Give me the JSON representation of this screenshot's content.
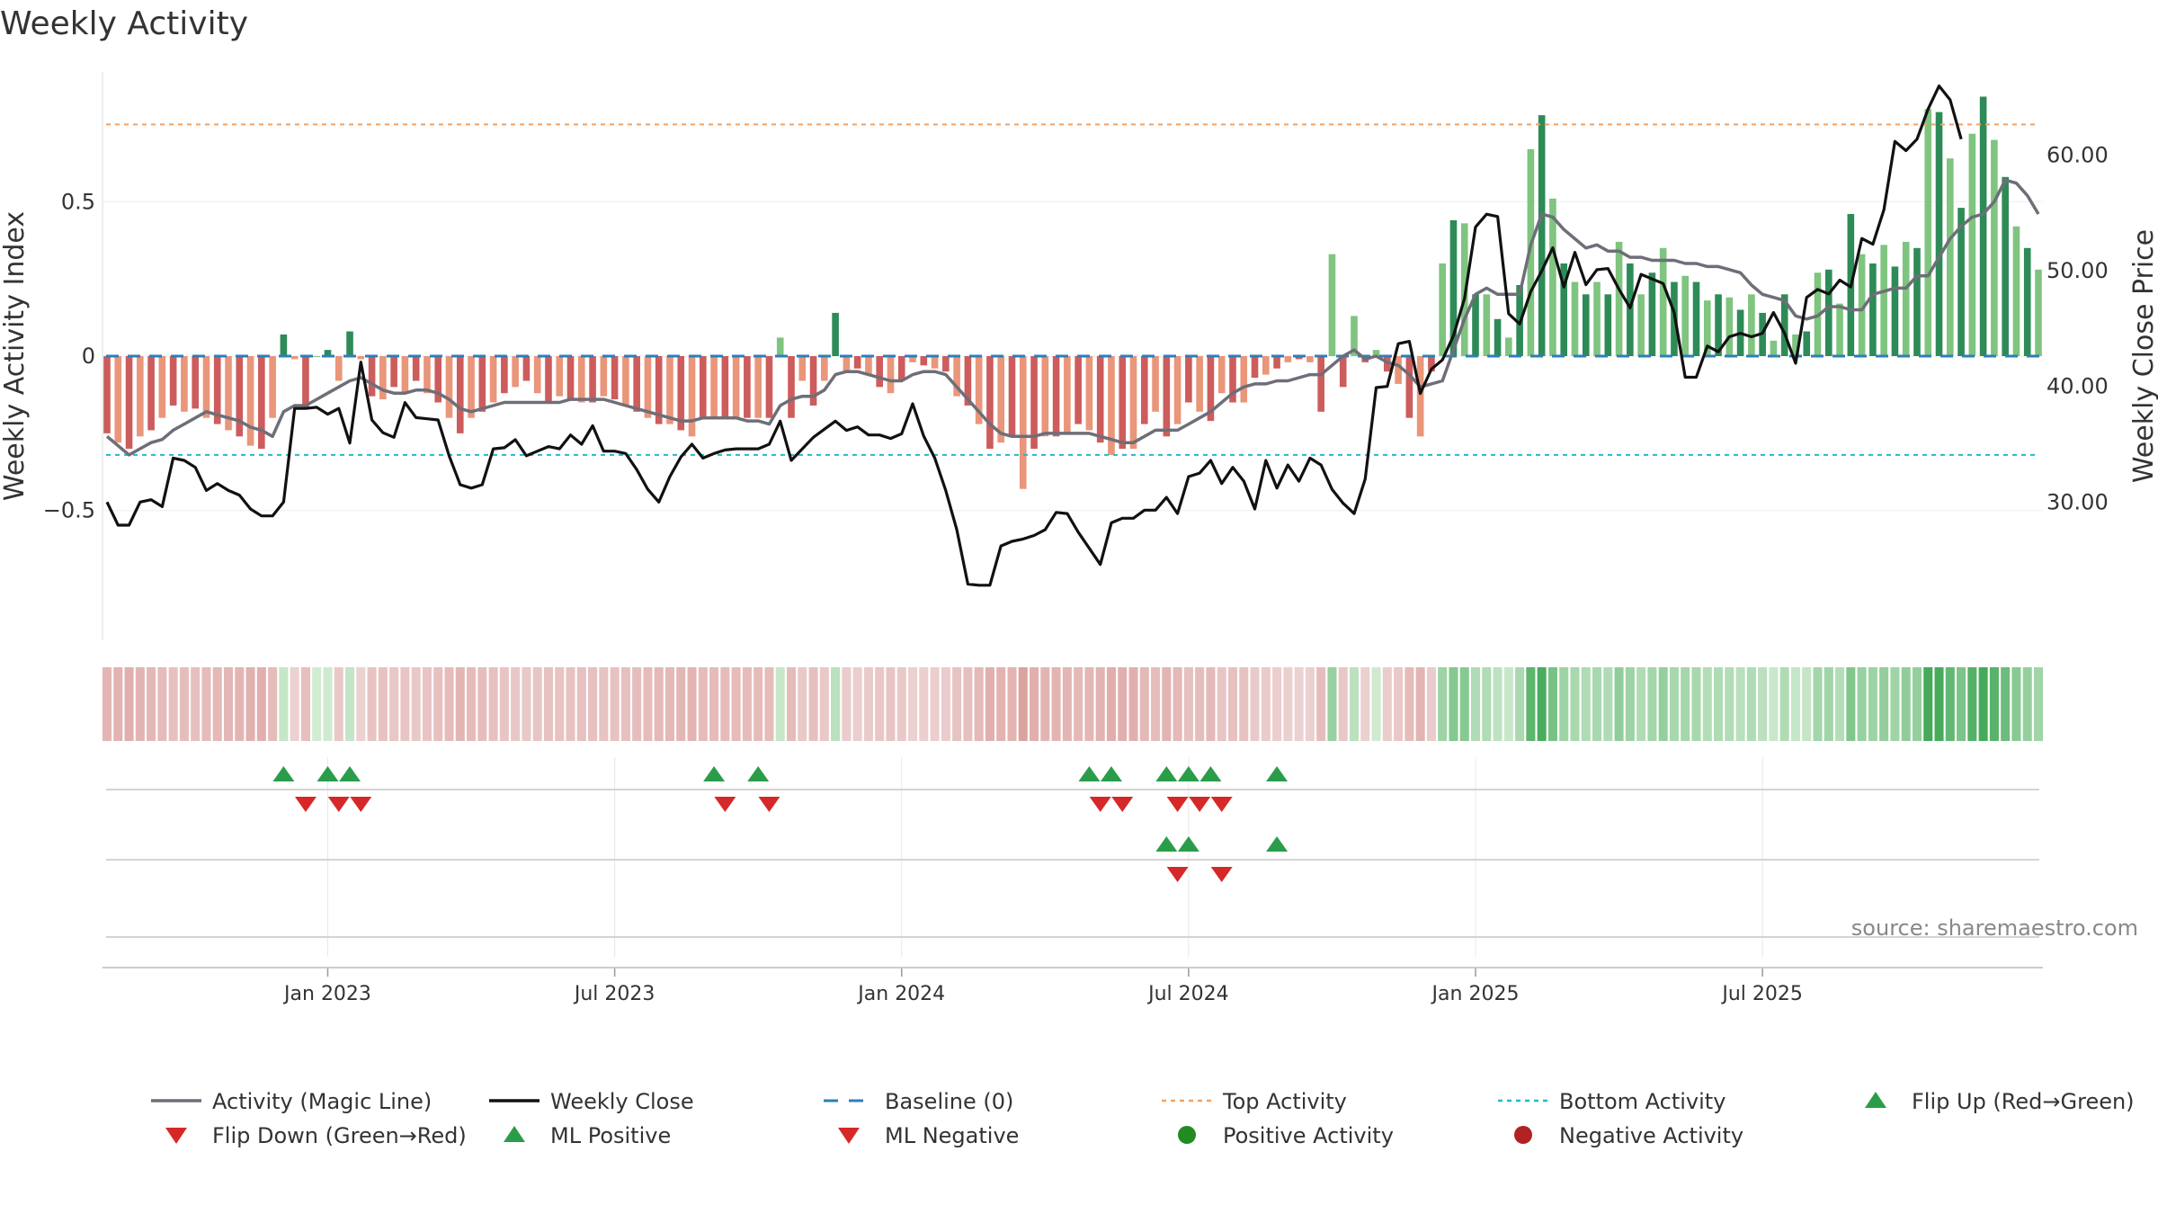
{
  "chart_data": {
    "type": "bar",
    "title": "Weekly Activity",
    "ylabel": "Weekly Activity Index",
    "y2label": "Weekly Close Price",
    "ylim": [
      -0.92,
      0.92
    ],
    "y2lim": [
      18.04,
      67.21
    ],
    "y_ticks": [
      {
        "value": 0.5,
        "label": "0.5"
      },
      {
        "value": 0,
        "label": "0"
      },
      {
        "value": -0.5,
        "label": "−0.5"
      }
    ],
    "y2_ticks": [
      {
        "value": 60,
        "label": "60.00"
      },
      {
        "value": 50,
        "label": "50.00"
      },
      {
        "value": 40,
        "label": "40.00"
      },
      {
        "value": 30,
        "label": "30.00"
      }
    ],
    "x_ticks": [
      {
        "index": 20,
        "label": "Jan 2023"
      },
      {
        "index": 46,
        "label": "Jul 2023"
      },
      {
        "index": 72,
        "label": "Jan 2024"
      },
      {
        "index": 98,
        "label": "Jul 2024"
      },
      {
        "index": 124,
        "label": "Jan 2025"
      },
      {
        "index": 150,
        "label": "Jul 2025"
      }
    ],
    "top_activity": 0.75,
    "bottom_activity": -0.32,
    "baseline": 0,
    "source": "source: sharemaestro.com",
    "series": [
      {
        "name": "Weekly Activity Index",
        "values": [
          -0.25,
          -0.28,
          -0.3,
          -0.26,
          -0.24,
          -0.2,
          -0.16,
          -0.18,
          -0.17,
          -0.2,
          -0.22,
          -0.24,
          -0.26,
          -0.29,
          -0.3,
          -0.2,
          0.07,
          -0.01,
          -0.17,
          0,
          0.02,
          -0.08,
          0.08,
          -0.01,
          -0.13,
          -0.14,
          -0.1,
          -0.12,
          -0.08,
          -0.12,
          -0.15,
          -0.2,
          -0.25,
          -0.2,
          -0.18,
          -0.15,
          -0.12,
          -0.1,
          -0.08,
          -0.12,
          -0.15,
          -0.13,
          -0.14,
          -0.15,
          -0.15,
          -0.13,
          -0.14,
          -0.16,
          -0.18,
          -0.2,
          -0.22,
          -0.22,
          -0.24,
          -0.26,
          -0.2,
          -0.2,
          -0.2,
          -0.2,
          -0.2,
          -0.2,
          -0.2,
          0.06,
          -0.2,
          -0.08,
          -0.16,
          -0.08,
          0.14,
          -0.05,
          -0.04,
          -0.06,
          -0.1,
          -0.12,
          -0.08,
          -0.02,
          -0.03,
          -0.04,
          -0.05,
          -0.13,
          -0.16,
          -0.22,
          -0.3,
          -0.28,
          -0.26,
          -0.43,
          -0.3,
          -0.26,
          -0.26,
          -0.25,
          -0.22,
          -0.24,
          -0.28,
          -0.32,
          -0.3,
          -0.3,
          -0.22,
          -0.18,
          -0.26,
          -0.22,
          -0.15,
          -0.18,
          -0.21,
          -0.12,
          -0.15,
          -0.15,
          -0.07,
          -0.06,
          -0.04,
          -0.02,
          -0.01,
          -0.02,
          -0.18,
          0.33,
          -0.1,
          0.13,
          -0.02,
          0.02,
          -0.05,
          -0.09,
          -0.2,
          -0.26,
          -0.05,
          0.3,
          0.44,
          0.43,
          0.2,
          0.2,
          0.12,
          0.06,
          0.23,
          0.67,
          0.78,
          0.51,
          0.3,
          0.24,
          0.2,
          0.24,
          0.2,
          0.37,
          0.3,
          0.2,
          0.27,
          0.35,
          0.24,
          0.26,
          0.24,
          0.18,
          0.2,
          0.19,
          0.15,
          0.2,
          0.14,
          0.05,
          0.2,
          0.07,
          0.08,
          0.27,
          0.28,
          0.17,
          0.46,
          0.33,
          0.3,
          0.36,
          0.29,
          0.37,
          0.35,
          0.8,
          0.79,
          0.64,
          0.48,
          0.72,
          0.84,
          0.7,
          0.58,
          0.42,
          0.35,
          0.28
        ]
      },
      {
        "name": "Activity (Magic Line)",
        "values": [
          -0.26,
          -0.29,
          -0.32,
          -0.3,
          -0.28,
          -0.27,
          -0.24,
          -0.22,
          -0.2,
          -0.18,
          -0.19,
          -0.2,
          -0.21,
          -0.23,
          -0.24,
          -0.26,
          -0.18,
          -0.16,
          -0.16,
          -0.14,
          -0.12,
          -0.1,
          -0.08,
          -0.07,
          -0.09,
          -0.11,
          -0.12,
          -0.12,
          -0.11,
          -0.11,
          -0.12,
          -0.14,
          -0.17,
          -0.18,
          -0.17,
          -0.16,
          -0.15,
          -0.15,
          -0.15,
          -0.15,
          -0.15,
          -0.15,
          -0.14,
          -0.14,
          -0.14,
          -0.14,
          -0.15,
          -0.16,
          -0.17,
          -0.18,
          -0.19,
          -0.2,
          -0.21,
          -0.21,
          -0.2,
          -0.2,
          -0.2,
          -0.2,
          -0.21,
          -0.21,
          -0.22,
          -0.16,
          -0.14,
          -0.13,
          -0.13,
          -0.11,
          -0.06,
          -0.05,
          -0.05,
          -0.06,
          -0.07,
          -0.08,
          -0.08,
          -0.06,
          -0.05,
          -0.05,
          -0.06,
          -0.1,
          -0.14,
          -0.18,
          -0.22,
          -0.25,
          -0.26,
          -0.26,
          -0.26,
          -0.25,
          -0.25,
          -0.25,
          -0.25,
          -0.25,
          -0.26,
          -0.27,
          -0.28,
          -0.28,
          -0.26,
          -0.24,
          -0.24,
          -0.24,
          -0.22,
          -0.2,
          -0.18,
          -0.15,
          -0.12,
          -0.1,
          -0.09,
          -0.09,
          -0.08,
          -0.08,
          -0.07,
          -0.06,
          -0.06,
          -0.03,
          0,
          0.02,
          -0.01,
          0,
          -0.02,
          -0.03,
          -0.06,
          -0.1,
          -0.09,
          -0.08,
          0.02,
          0.12,
          0.2,
          0.22,
          0.2,
          0.2,
          0.2,
          0.36,
          0.46,
          0.45,
          0.41,
          0.38,
          0.35,
          0.36,
          0.34,
          0.34,
          0.32,
          0.32,
          0.31,
          0.31,
          0.31,
          0.3,
          0.3,
          0.29,
          0.29,
          0.28,
          0.27,
          0.23,
          0.2,
          0.19,
          0.18,
          0.13,
          0.12,
          0.13,
          0.16,
          0.16,
          0.15,
          0.15,
          0.2,
          0.21,
          0.22,
          0.22,
          0.26,
          0.26,
          0.32,
          0.38,
          0.42,
          0.45,
          0.46,
          0.5,
          0.57,
          0.56,
          0.52,
          0.46
        ]
      },
      {
        "name": "Weekly Close",
        "values": [
          30,
          28,
          28,
          30,
          30.2,
          29.6,
          33.8,
          33.6,
          33,
          31,
          31.6,
          31,
          30.6,
          29.4,
          28.8,
          28.8,
          30,
          38.1,
          38.1,
          38.2,
          37.6,
          38.1,
          35.1,
          42.1,
          37.1,
          36,
          35.6,
          38.6,
          37.3,
          37.2,
          37.1,
          34,
          31.5,
          31.2,
          31.5,
          34.6,
          34.7,
          35.4,
          34,
          34.4,
          34.8,
          34.6,
          35.8,
          35,
          36.6,
          34.4,
          34.4,
          34.2,
          32.8,
          31.1,
          30,
          32.2,
          33.9,
          35,
          33.8,
          34.2,
          34.5,
          34.6,
          34.6,
          34.6,
          35,
          37,
          33.6,
          34.6,
          35.6,
          36.3,
          37,
          36.2,
          36.5,
          35.8,
          35.8,
          35.5,
          35.9,
          38.5,
          35.7,
          33.8,
          31,
          27.6,
          22.9,
          22.8,
          22.8,
          26.2,
          26.6,
          26.8,
          27.1,
          27.6,
          29.1,
          29,
          27.4,
          26,
          24.6,
          28.2,
          28.6,
          28.6,
          29.3,
          29.3,
          30.4,
          29,
          32.2,
          32.5,
          33.6,
          31.6,
          33,
          31.8,
          29.4,
          33.6,
          31.2,
          33.2,
          31.8,
          33.8,
          33.2,
          31.1,
          29.9,
          29,
          32,
          39.9,
          40,
          43.7,
          43.9,
          39.4,
          41.5,
          42.3,
          44.4,
          47.6,
          53.8,
          54.9,
          54.7,
          46.3,
          45.4,
          48.2,
          50,
          52,
          48.6,
          51.6,
          48.8,
          50.1,
          50.2,
          48.4,
          46.8,
          49.7,
          49.3,
          48.9,
          46.4,
          40.8,
          40.8,
          43.5,
          43,
          44.3,
          44.6,
          44.3,
          44.6,
          46.4,
          44.6,
          42,
          47.7,
          48.4,
          48,
          49.2,
          48.6,
          52.8,
          52.3,
          55.3,
          61.2,
          60.4,
          61.4,
          64,
          66,
          64.8,
          61.4
        ]
      }
    ],
    "legend": [
      {
        "label": "Activity (Magic Line)",
        "type": "line",
        "color": "#6e6e78"
      },
      {
        "label": "Weekly Close",
        "type": "line",
        "color": "#111111"
      },
      {
        "label": "Baseline (0)",
        "type": "dashed",
        "color": "#2c7fb8"
      },
      {
        "label": "Top Activity",
        "type": "dotted",
        "color": "#f4a261"
      },
      {
        "label": "Bottom Activity",
        "type": "dotted",
        "color": "#22b8cf"
      },
      {
        "label": "Flip Up (Red→Green)",
        "type": "triangle-up",
        "color": "#2a9d4a"
      },
      {
        "label": "Flip Down (Green→Red)",
        "type": "triangle-down",
        "color": "#d62828"
      },
      {
        "label": "ML Positive",
        "type": "triangle-up",
        "color": "#2a9d4a"
      },
      {
        "label": "ML Negative",
        "type": "triangle-down",
        "color": "#d62828"
      },
      {
        "label": "Positive Activity",
        "type": "dot",
        "color": "#228b22"
      },
      {
        "label": "Negative Activity",
        "type": "dot",
        "color": "#b22222"
      }
    ],
    "flip_up": [
      16,
      20,
      22,
      55,
      59,
      89,
      91,
      96,
      98,
      100,
      106
    ],
    "flip_down": [
      18,
      21,
      23,
      56,
      60,
      90,
      92,
      97,
      99,
      101
    ],
    "ml_positive": [
      96,
      98,
      106
    ],
    "ml_negative": [
      97,
      101
    ]
  },
  "colors": {
    "pos_dark": "#2e8b57",
    "pos_light": "#7fc47f",
    "neg_dark": "#cd5c5c",
    "neg_light": "#e9967a",
    "magic_line": "#6e6e78",
    "close": "#111111",
    "baseline": "#2c7fb8",
    "top": "#f4a261",
    "bottom": "#22b8cf",
    "tri_up": "#2a9d4a",
    "tri_down": "#d62828"
  }
}
